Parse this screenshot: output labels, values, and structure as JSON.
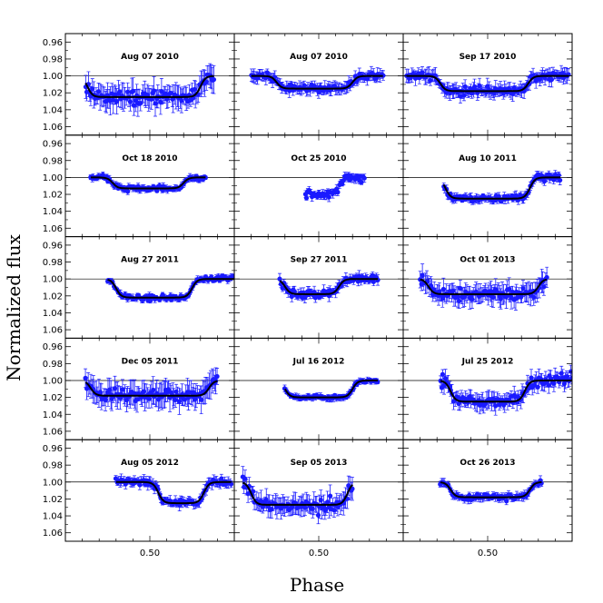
{
  "chart_data": {
    "type": "scatter",
    "title": "",
    "xlabel": "Phase",
    "ylabel": "Normalized flux",
    "y_inverted": true,
    "ylim": [
      0.95,
      1.07
    ],
    "xlim": [
      0.0,
      1.0
    ],
    "yticks": [
      0.96,
      0.98,
      1.0,
      1.02,
      1.04,
      1.06
    ],
    "ytick_labels": [
      "0.96",
      "0.98",
      "1.00",
      "1.02",
      "1.04",
      "1.06"
    ],
    "xticks": [
      0.5
    ],
    "xtick_labels": [
      "0.50"
    ],
    "colors": {
      "points": "#1a1aff",
      "fit": "#000000",
      "frame": "#000000"
    },
    "panels": [
      {
        "label": "Aug 07 2010",
        "phase": [
          0.12,
          0.88
        ],
        "depth": 0.025,
        "ingress": 0.13,
        "egress": 0.8,
        "scatter": 0.008,
        "errbar": 0.012,
        "fit": true
      },
      {
        "label": "Aug 07 2010",
        "phase": [
          0.1,
          0.88
        ],
        "depth": 0.015,
        "ingress": 0.25,
        "egress": 0.7,
        "scatter": 0.004,
        "errbar": 0.006,
        "fit": true
      },
      {
        "label": "Sep 17 2010",
        "phase": [
          0.02,
          0.98
        ],
        "depth": 0.018,
        "ingress": 0.22,
        "egress": 0.74,
        "scatter": 0.005,
        "errbar": 0.007,
        "fit": true
      },
      {
        "label": "Oct 18 2010",
        "phase": [
          0.15,
          0.83
        ],
        "depth": 0.013,
        "ingress": 0.28,
        "egress": 0.7,
        "scatter": 0.003,
        "errbar": 0.003,
        "fit": true
      },
      {
        "label": "Oct 25 2010",
        "phase": [
          0.42,
          0.77
        ],
        "depth": 0.02,
        "ingress": 0.35,
        "egress": 0.62,
        "scatter": 0.005,
        "errbar": 0.004,
        "fit": false
      },
      {
        "label": "Aug 10 2011",
        "phase": [
          0.24,
          0.93
        ],
        "depth": 0.025,
        "ingress": 0.25,
        "egress": 0.75,
        "scatter": 0.004,
        "errbar": 0.004,
        "fit": true
      },
      {
        "label": "Aug 27 2011",
        "phase": [
          0.25,
          1.0
        ],
        "depth": 0.022,
        "ingress": 0.3,
        "egress": 0.75,
        "scatter": 0.003,
        "errbar": 0.003,
        "fit": true
      },
      {
        "label": "Sep 27 2011",
        "phase": [
          0.27,
          0.85
        ],
        "depth": 0.018,
        "ingress": 0.3,
        "egress": 0.62,
        "scatter": 0.004,
        "errbar": 0.005,
        "fit": true
      },
      {
        "label": "Oct 01 2013",
        "phase": [
          0.1,
          0.85
        ],
        "depth": 0.018,
        "ingress": 0.15,
        "egress": 0.8,
        "scatter": 0.007,
        "errbar": 0.01,
        "fit": true
      },
      {
        "label": "Dec 05 2011",
        "phase": [
          0.12,
          0.9
        ],
        "depth": 0.018,
        "ingress": 0.15,
        "egress": 0.85,
        "scatter": 0.007,
        "errbar": 0.012,
        "fit": true
      },
      {
        "label": "Jul 16 2012",
        "phase": [
          0.3,
          0.85
        ],
        "depth": 0.02,
        "ingress": 0.3,
        "egress": 0.7,
        "scatter": 0.002,
        "errbar": 0.003,
        "fit": true
      },
      {
        "label": "Jul 25 2012",
        "phase": [
          0.22,
          1.0
        ],
        "depth": 0.025,
        "ingress": 0.28,
        "egress": 0.72,
        "scatter": 0.007,
        "errbar": 0.008,
        "fit": true
      },
      {
        "label": "Aug 05 2012",
        "phase": [
          0.3,
          0.98
        ],
        "depth": 0.025,
        "ingress": 0.55,
        "egress": 0.82,
        "scatter": 0.004,
        "errbar": 0.005,
        "fit": true
      },
      {
        "label": "Sep 05 2013",
        "phase": [
          0.05,
          0.7
        ],
        "depth": 0.027,
        "ingress": 0.1,
        "egress": 0.67,
        "scatter": 0.008,
        "errbar": 0.01,
        "fit": true
      },
      {
        "label": "Oct 26 2013",
        "phase": [
          0.22,
          0.82
        ],
        "depth": 0.018,
        "ingress": 0.28,
        "egress": 0.75,
        "scatter": 0.003,
        "errbar": 0.004,
        "fit": true
      }
    ]
  }
}
